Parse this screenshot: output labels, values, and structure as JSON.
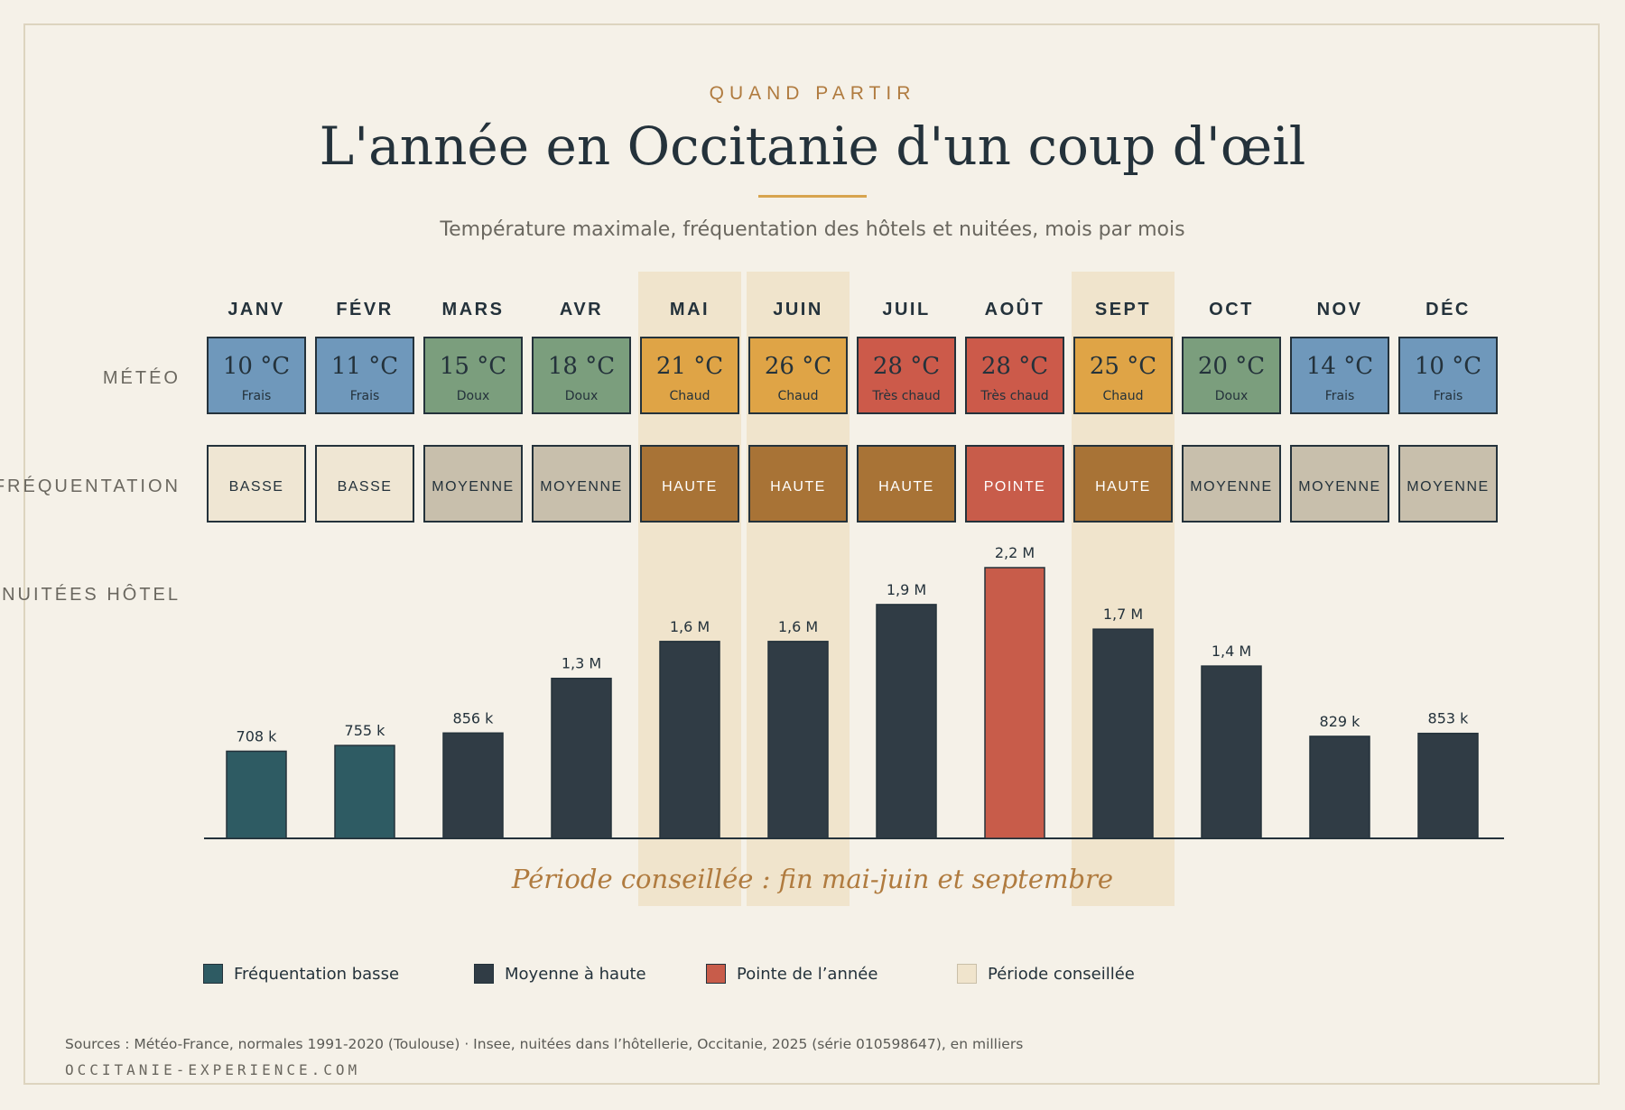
{
  "header": {
    "kicker": "QUAND PARTIR",
    "title": "L'année en Occitanie d'un coup d'œil",
    "subtitle": "Température maximale, fréquentation des hôtels et nuitées, mois par mois"
  },
  "row_labels": {
    "weather": "MÉTÉO",
    "attendance": "FRÉQUENTATION",
    "nights": "NUITÉES HÔTEL"
  },
  "chart_data": {
    "type": "bar",
    "categories": [
      "JANV",
      "FÉVR",
      "MARS",
      "AVR",
      "MAI",
      "JUIN",
      "JUIL",
      "AOÛT",
      "SEPT",
      "OCT",
      "NOV",
      "DÉC"
    ],
    "values": [
      708,
      755,
      856,
      1300,
      1600,
      1600,
      1900,
      2200,
      1700,
      1400,
      829,
      853
    ],
    "value_unit": "milliers de nuitées",
    "data_labels": [
      "708 k",
      "755 k",
      "856 k",
      "1,3 M",
      "1,6 M",
      "1,6 M",
      "1,9 M",
      "2,2 M",
      "1,7 M",
      "1,4 M",
      "829 k",
      "853 k"
    ],
    "bar_category": [
      "basse",
      "basse",
      "moyenne",
      "moyenne",
      "moyenne",
      "moyenne",
      "moyenne",
      "pointe",
      "moyenne",
      "moyenne",
      "moyenne",
      "moyenne"
    ],
    "ylim": [
      0,
      2200
    ],
    "temperature": {
      "labels": [
        "10 °C",
        "11 °C",
        "15 °C",
        "18 °C",
        "21 °C",
        "26 °C",
        "28 °C",
        "28 °C",
        "25 °C",
        "20 °C",
        "14 °C",
        "10 °C"
      ],
      "descriptors": [
        "Frais",
        "Frais",
        "Doux",
        "Doux",
        "Chaud",
        "Chaud",
        "Très chaud",
        "Très chaud",
        "Chaud",
        "Doux",
        "Frais",
        "Frais"
      ]
    },
    "attendance": [
      "BASSE",
      "BASSE",
      "MOYENNE",
      "MOYENNE",
      "HAUTE",
      "HAUTE",
      "HAUTE",
      "POINTE",
      "HAUTE",
      "MOYENNE",
      "MOYENNE",
      "MOYENNE"
    ],
    "recommended_months": [
      "MAI",
      "JUIN",
      "SEPT"
    ],
    "recommended_note": "Période conseillée : fin mai-juin et septembre",
    "legend": [
      {
        "key": "basse",
        "label": "Fréquentation basse",
        "color": "#2e5b63"
      },
      {
        "key": "moyenne",
        "label": "Moyenne à haute",
        "color": "#303c45"
      },
      {
        "key": "pointe",
        "label": "Pointe de l’année",
        "color": "#c85c4a"
      },
      {
        "key": "periode",
        "label": "Période conseillée",
        "color": "#f0e4cc"
      }
    ]
  },
  "colors": {
    "temperature_descriptor": {
      "Frais": "#6f98bb",
      "Doux": "#7b9e7d",
      "Chaud": "#dfa446",
      "Très chaud": "#cc5a4a"
    },
    "attendance": {
      "BASSE": "#efe6d3",
      "MOYENNE": "#c8bfac",
      "HAUTE": "#a87336",
      "POINTE": "#c85c4a"
    },
    "attendance_text": {
      "BASSE": "#24323b",
      "MOYENNE": "#24323b",
      "HAUTE": "#ffffff",
      "POINTE": "#ffffff"
    },
    "tile_border": "#24323b",
    "highlight": "#f0e4cc"
  },
  "footer": {
    "source": "Sources : Météo-France, normales 1991-2020 (Toulouse) · Insee, nuitées dans l’hôtellerie, Occitanie, 2025 (série 010598647), en milliers",
    "site": "OCCITANIE-EXPERIENCE.COM"
  }
}
